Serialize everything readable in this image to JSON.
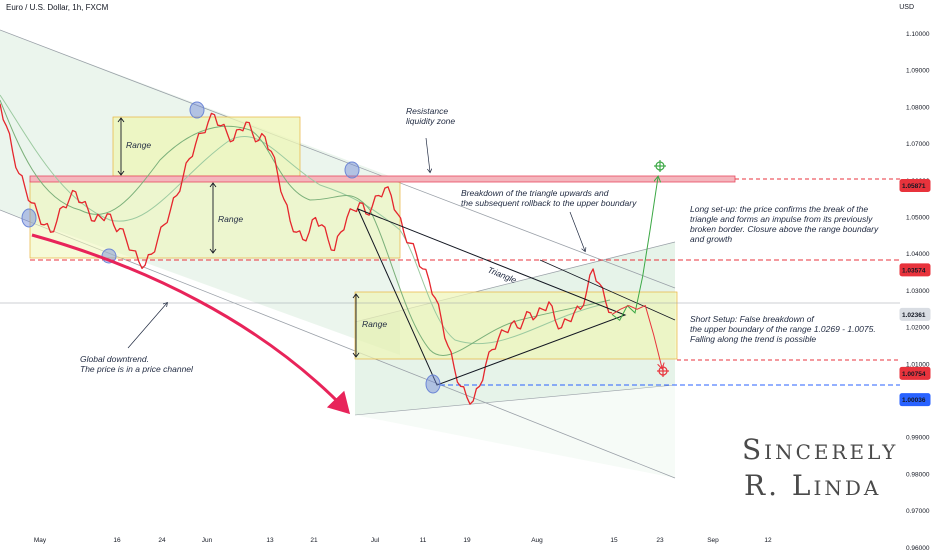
{
  "header": {
    "title": "Euro / U.S. Dollar, 1h, FXCM",
    "currency": "USD"
  },
  "signature": {
    "line1": "Sincerely",
    "line2": "R. Linda"
  },
  "annotations": {
    "range_top": "Range",
    "range_mid": "Range",
    "range_right": "Range",
    "resistance": "Resistance\nliquidity zone",
    "breakdown": "Breakdown of the triangle upwards and\nthe subsequent rollback to the upper boundary",
    "triangle": "Triangle",
    "long": "Long set-up: the price confirms the break of the\ntriangle and forms an impulse from its previously\nbroken border. Closure above the range boundary\nand growth",
    "short": "Short Setup: False breakdown of\nthe upper boundary of the range 1.0269 - 1.0075.\nFalling along the trend is possible",
    "downtrend": "Global downtrend.\nThe price is in a price channel"
  },
  "colors": {
    "candle": "#e5262d",
    "ma_fast": "#7bb07a",
    "ma_slow": "#9ccaa0",
    "range_fill": "#eef5b6",
    "range_border": "#e8b33c",
    "channel_fill": "#8fc79a",
    "resistance": "#e84a5f",
    "level_red": "#e8333c",
    "level_blue": "#2962ff",
    "arrow_pink": "#e8245a",
    "arrow_green": "#3ca845",
    "circle": "#6c86d6"
  },
  "chart_data": {
    "type": "line",
    "title": "Euro / U.S. Dollar, 1h, FXCM",
    "xlabel": "",
    "ylabel": "USD",
    "ylim": [
      0.955,
      1.105
    ],
    "x_ticks": [
      "May",
      "16",
      "24",
      "Jun",
      "13",
      "21",
      "Jul",
      "11",
      "19",
      "Aug",
      "15",
      "23",
      "Sep",
      "12"
    ],
    "y_ticks": [
      "1.10000",
      "1.09000",
      "1.08000",
      "1.07000",
      "1.06000",
      "1.05000",
      "1.04000",
      "1.03000",
      "1.02000",
      "1.01000",
      "1.00000",
      "0.99000",
      "0.98000",
      "0.97000",
      "0.96000"
    ],
    "price_labels": [
      {
        "label": "1.05871",
        "value": 1.05871,
        "style": "red"
      },
      {
        "label": "1.03574",
        "value": 1.03574,
        "style": "red"
      },
      {
        "label": "1.02361",
        "value": 1.02361,
        "style": "current"
      },
      {
        "label": "1.00754",
        "value": 1.00754,
        "style": "red"
      },
      {
        "label": "1.00036",
        "value": 1.00036,
        "style": "blue"
      }
    ],
    "series": [
      {
        "values": [
          1.081,
          1.075,
          1.068,
          1.062,
          1.058,
          1.054,
          1.051,
          1.048,
          1.046,
          1.049,
          1.053,
          1.055,
          1.057,
          1.054,
          1.052,
          1.049,
          1.05,
          1.051,
          1.048,
          1.047,
          1.044,
          1.041,
          1.038,
          1.037,
          1.04,
          1.044,
          1.048,
          1.052,
          1.056,
          1.061,
          1.066,
          1.07,
          1.073,
          1.076,
          1.078,
          1.075,
          1.073,
          1.071,
          1.074,
          1.076,
          1.073,
          1.071,
          1.072,
          1.068,
          1.062,
          1.055,
          1.049,
          1.046,
          1.044,
          1.046,
          1.05,
          1.048,
          1.044,
          1.041,
          1.046,
          1.05,
          1.052,
          1.054,
          1.051,
          1.053,
          1.056,
          1.058,
          1.056,
          1.051,
          1.046,
          1.043,
          1.04,
          1.036,
          1.033,
          1.028,
          1.022,
          1.015,
          1.009,
          1.004,
          1.001,
          1.0,
          1.004,
          1.01,
          1.014,
          1.017,
          1.019,
          1.021,
          1.02,
          1.022,
          1.024,
          1.023,
          1.025,
          1.027,
          1.022,
          1.02,
          1.022,
          1.024,
          1.025,
          1.03,
          1.036,
          1.032,
          1.027,
          1.024
        ],
        "forecast_long": [
          1.0236,
          1.022,
          1.026,
          1.024,
          1.034,
          1.047,
          1.061
        ],
        "forecast_short": [
          1.0236,
          1.025,
          1.026,
          1.025,
          1.026,
          1.018,
          1.009
        ]
      }
    ]
  }
}
